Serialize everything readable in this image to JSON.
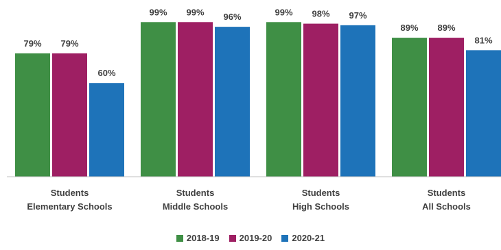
{
  "chart_data": {
    "type": "bar",
    "categories": [
      [
        "Students",
        "Elementary Schools"
      ],
      [
        "Students",
        "Middle Schools"
      ],
      [
        "Students",
        "High Schools"
      ],
      [
        "Students",
        "All Schools"
      ]
    ],
    "series": [
      {
        "name": "2018-19",
        "color": "#3f8f45",
        "values": [
          79,
          99,
          99,
          89
        ]
      },
      {
        "name": "2019-20",
        "color": "#9e1f63",
        "values": [
          79,
          99,
          98,
          89
        ]
      },
      {
        "name": "2020-21",
        "color": "#1e73b9",
        "values": [
          60,
          96,
          97,
          81
        ]
      }
    ],
    "value_suffix": "%",
    "ylim": [
      0,
      100
    ],
    "grid": false,
    "legend_position": "bottom"
  }
}
